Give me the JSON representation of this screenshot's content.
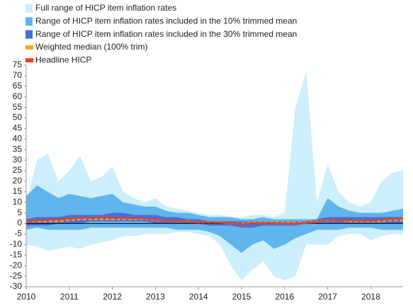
{
  "chart_data": {
    "type": "band",
    "x": [
      2010,
      2010.25,
      2010.5,
      2010.75,
      2011,
      2011.25,
      2011.5,
      2011.75,
      2012,
      2012.25,
      2012.5,
      2012.75,
      2013,
      2013.25,
      2013.5,
      2013.75,
      2014,
      2014.25,
      2014.5,
      2014.75,
      2015,
      2015.25,
      2015.5,
      2015.75,
      2016,
      2016.25,
      2016.5,
      2016.75,
      2017,
      2017.25,
      2017.5,
      2017.75,
      2018,
      2018.25,
      2018.5,
      2018.75
    ],
    "bands": [
      {
        "name": "Full range of HICP item inflation rates",
        "color": "#cdeefb",
        "high": [
          10,
          30,
          33,
          20,
          25,
          32,
          20,
          22,
          27,
          15,
          12,
          10,
          12,
          8,
          7,
          6,
          5,
          4,
          4,
          3,
          3,
          4,
          4,
          3,
          5,
          55,
          72,
          10,
          28,
          15,
          10,
          8,
          10,
          20,
          24,
          25
        ],
        "low": [
          -10,
          -11,
          -13,
          -12,
          -11,
          -12,
          -10,
          -9,
          -8,
          -6,
          -6,
          -5,
          -5,
          -5,
          -4,
          -4,
          -5,
          -6,
          -10,
          -20,
          -27,
          -22,
          -18,
          -25,
          -27,
          -25,
          -10,
          -10,
          -10,
          -6,
          -5,
          -5,
          -8,
          -6,
          -5,
          -5
        ]
      },
      {
        "name": "Range of HICP item inflation rates included in the 10% trimmed mean",
        "color": "#5fb5ec",
        "high": [
          13,
          18,
          15,
          12,
          14,
          13,
          12,
          13,
          14,
          10,
          9,
          8,
          8,
          6,
          5,
          5,
          4,
          3,
          3,
          3,
          2,
          2,
          3,
          2,
          2,
          2,
          2,
          2,
          12,
          8,
          6,
          5,
          5,
          5,
          6,
          7
        ],
        "low": [
          -3,
          -2,
          -3,
          -3,
          -3,
          -3,
          -2,
          -2,
          -2,
          -2,
          -2,
          -2,
          -2,
          -2,
          -3,
          -3,
          -3,
          -4,
          -6,
          -10,
          -14,
          -10,
          -8,
          -12,
          -10,
          -7,
          -5,
          -3,
          -3,
          -3,
          -2,
          -2,
          -2,
          -3,
          -3,
          -3
        ]
      },
      {
        "name": "Range of HICP item inflation rates included in the 30% trimmed mean",
        "color": "#4a6fd4",
        "high": [
          2,
          3,
          3,
          3,
          4,
          4,
          4,
          4,
          5,
          5,
          4,
          4,
          4,
          3,
          3,
          2,
          2,
          1,
          1,
          1,
          1,
          1,
          1,
          1,
          1,
          1,
          1,
          2,
          3,
          3,
          3,
          3,
          3,
          3,
          3,
          3
        ],
        "low": [
          -1,
          -1,
          -1,
          0,
          0,
          0,
          1,
          1,
          1,
          1,
          1,
          1,
          0,
          0,
          0,
          0,
          0,
          -1,
          -1,
          -1,
          -2,
          -2,
          -1,
          -1,
          -1,
          -1,
          0,
          0,
          0,
          0,
          0,
          0,
          0,
          0,
          0,
          0
        ]
      }
    ],
    "series": [
      {
        "name": "Weighted median (100% trim)",
        "color": "#f5a623",
        "dashed": true,
        "values": [
          1,
          1,
          1,
          1,
          1.5,
          2,
          2,
          2,
          2,
          2,
          2,
          2,
          1.5,
          1.5,
          1,
          1,
          0.5,
          0.5,
          0.5,
          0,
          0,
          0.5,
          0.5,
          0.5,
          0.5,
          0.5,
          0.5,
          1,
          1.5,
          1.5,
          1,
          1,
          1,
          1,
          1.5,
          1.5
        ]
      },
      {
        "name": "Headline HICP",
        "color": "#e8402a",
        "dashed": false,
        "values": [
          1,
          1.5,
          1.6,
          2,
          2.3,
          2.7,
          2.6,
          2.9,
          2.7,
          2.5,
          2.5,
          2.3,
          1.8,
          1.4,
          1.2,
          0.8,
          0.6,
          0.6,
          0.4,
          0.2,
          -0.4,
          0.2,
          0.1,
          0.1,
          0,
          0,
          0.3,
          0.6,
          1.8,
          1.5,
          1.5,
          1.4,
          1.3,
          1.7,
          2.1,
          2.2
        ]
      }
    ],
    "xlim": [
      2010,
      2018.75
    ],
    "xticks": [
      2010,
      2011,
      2012,
      2013,
      2014,
      2015,
      2016,
      2017,
      2018
    ],
    "ylim": [
      -30,
      75
    ],
    "yticks": [
      -30,
      -25,
      -20,
      -15,
      -10,
      -5,
      0,
      5,
      10,
      15,
      20,
      25,
      30,
      35,
      40,
      45,
      50,
      55,
      60,
      65,
      70,
      75
    ]
  }
}
